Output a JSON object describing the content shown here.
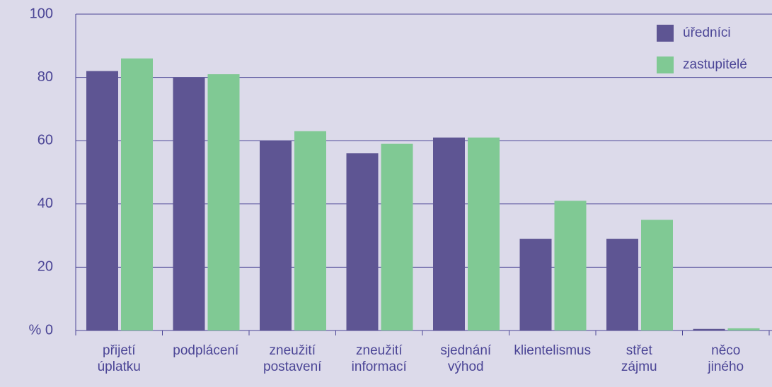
{
  "chart_data": {
    "type": "bar",
    "categories": [
      "přijetí úplatku",
      "podplácení",
      "zneužití postavení",
      "zneužití informací",
      "sjednání výhod",
      "klientelismus",
      "střet zájmu",
      "něco jiného"
    ],
    "series": [
      {
        "name": "úředníci",
        "color": "#5e5593",
        "values": [
          82,
          80,
          60,
          56,
          61,
          29,
          29,
          0.5
        ]
      },
      {
        "name": "zastupitelé",
        "color": "#80c994",
        "values": [
          86,
          81,
          63,
          59,
          61,
          41,
          35,
          0.7
        ]
      }
    ],
    "ylim": [
      0,
      100
    ],
    "yticks": [
      {
        "value": 0,
        "label": "% 0"
      },
      20,
      40,
      60,
      80,
      100
    ],
    "grid": true,
    "legend": "top-right"
  }
}
